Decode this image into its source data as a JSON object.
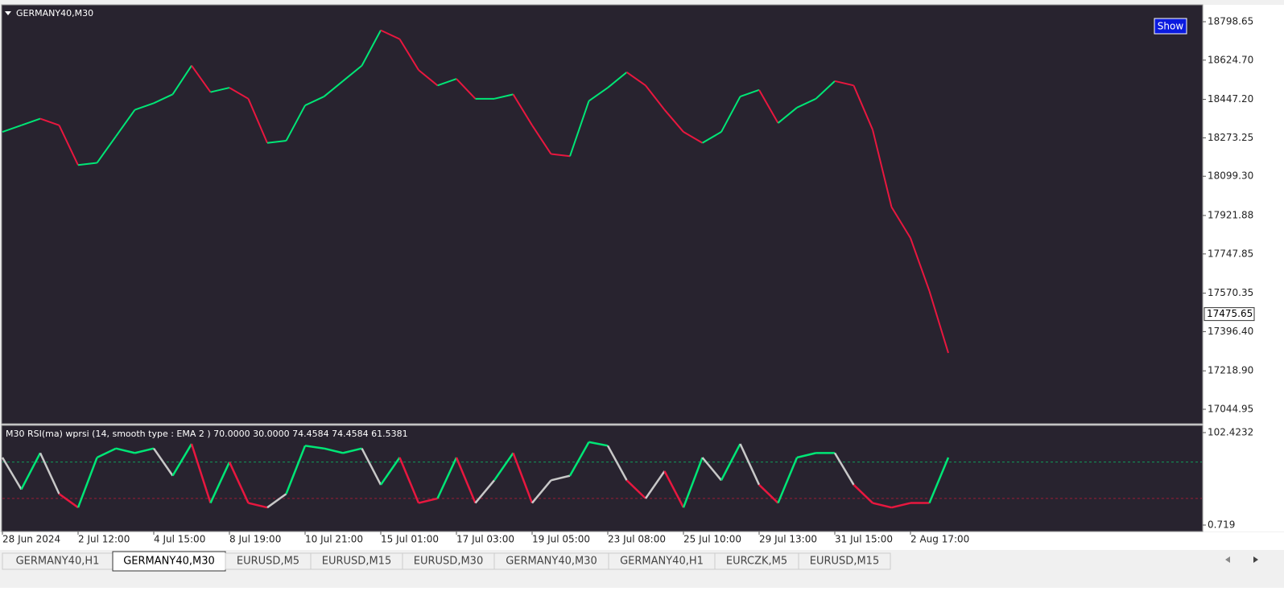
{
  "window_title": "GERMANY40,M30",
  "show_button": "Show",
  "chart_data": {
    "type": "line",
    "categories": [
      "28 Jun 2024",
      null,
      null,
      null,
      "2 Jul 12:00",
      null,
      null,
      null,
      "4 Jul 15:00",
      null,
      null,
      null,
      "8 Jul 19:00",
      null,
      null,
      null,
      "10 Jul 21:00",
      null,
      null,
      null,
      "15 Jul 01:00",
      null,
      null,
      null,
      "17 Jul 03:00",
      null,
      null,
      null,
      "19 Jul 05:00",
      null,
      null,
      null,
      "23 Jul 08:00",
      null,
      null,
      null,
      "25 Jul 10:00",
      null,
      null,
      null,
      "29 Jul 13:00",
      null,
      null,
      null,
      "31 Jul 15:00",
      null,
      null,
      null,
      "2 Aug 17:00",
      null,
      null
    ],
    "series": [
      {
        "name": "GERMANY40,M30",
        "color": "#00e676",
        "down_color": "#e8173f",
        "values": [
          18300,
          18330,
          18360,
          18330,
          18150,
          18160,
          18280,
          18400,
          18430,
          18470,
          18600,
          18480,
          18500,
          18450,
          18250,
          18260,
          18420,
          18460,
          18530,
          18600,
          18760,
          18720,
          18580,
          18510,
          18540,
          18450,
          18450,
          18470,
          18330,
          18200,
          18190,
          18440,
          18500,
          18570,
          18510,
          18400,
          18300,
          18250,
          18300,
          18460,
          18490,
          18340,
          18410,
          18450,
          18530,
          18510,
          18310,
          17960,
          17820,
          17580,
          17300
        ]
      }
    ],
    "ylim": [
      16983.1,
      18871.4
    ],
    "yticks": [
      18798.65,
      {
        "value": 18624.7,
        "label": "18624.70"
      },
      {
        "value": 18447.2,
        "label": "18447.20"
      },
      18273.25,
      {
        "value": 18099.3,
        "label": "18099.30"
      },
      17921.88,
      17747.85,
      17570.35,
      {
        "value": 17396.4,
        "label": "17396.40"
      },
      {
        "value": 17218.9,
        "label": "17218.90"
      },
      17044.95
    ],
    "current_price": 17475.65
  },
  "indicator": {
    "type": "line",
    "label": "M30 RSI(ma) wprsi (14, smooth type : EMA  2 ) 70.0000 30.0000 74.4584 74.4584 61.5381",
    "values": [
      75,
      40,
      80,
      35,
      20,
      75,
      85,
      80,
      85,
      55,
      90,
      25,
      70,
      25,
      20,
      35,
      88,
      85,
      80,
      85,
      45,
      75,
      25,
      30,
      75,
      25,
      50,
      80,
      25,
      50,
      55,
      92,
      88,
      50,
      30,
      60,
      20,
      75,
      50,
      90,
      45,
      25,
      75,
      80,
      80,
      45,
      25,
      20,
      25,
      25,
      75
    ],
    "levels": [
      70,
      30
    ],
    "up_color": "#00e676",
    "down_color": "#e8173f",
    "mid_color": "#c8c8c8",
    "ylim": [
      -5.47,
      109.5
    ],
    "yticks": [
      102.4232,
      0.719
    ]
  },
  "tabs": [
    "GERMANY40,H1",
    "GERMANY40,M30",
    "EURUSD,M5",
    "EURUSD,M15",
    "EURUSD,M30",
    "GERMANY40,M30",
    "GERMANY40,H1",
    "EURCZK,M5",
    "EURUSD,M15"
  ],
  "active_tab": 1
}
